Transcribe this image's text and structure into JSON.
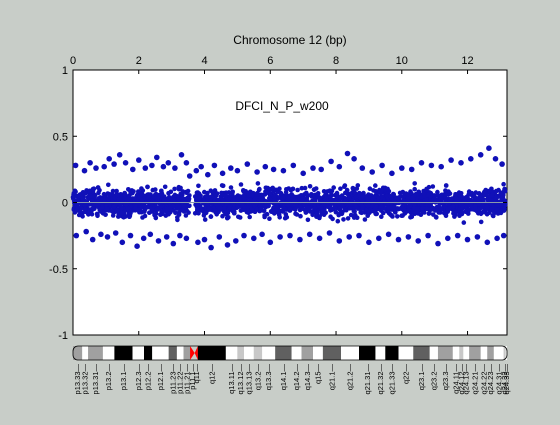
{
  "chart_data": {
    "type": "scatter",
    "title": "Chromosome 12 (bp)",
    "annotation": "DFCI_N_P_w200",
    "xlim": [
      0,
      13.2
    ],
    "ylim": [
      -1,
      1
    ],
    "x_ticks": [
      {
        "value": 0,
        "label": "0"
      },
      {
        "value": 2,
        "label": "2"
      },
      {
        "value": 4,
        "label": "4"
      },
      {
        "value": 6,
        "label": "6"
      },
      {
        "value": 8,
        "label": "8"
      },
      {
        "value": 10,
        "label": "10"
      },
      {
        "value": 12,
        "label": "12"
      }
    ],
    "y_ticks": [
      {
        "value": 1,
        "label": "1"
      },
      {
        "value": 0.5,
        "label": "0.5"
      },
      {
        "value": 0,
        "label": "0"
      },
      {
        "value": -0.5,
        "label": "-0.5"
      },
      {
        "value": -1,
        "label": "-1"
      }
    ],
    "x_axis_position": "top",
    "grid": false,
    "baseline": 0,
    "marker_color": "#1010b8",
    "baseline_color": "#8a9aa8",
    "gap": [
      3.55,
      3.7
    ],
    "series": [
      {
        "values_x": [
          0.08,
          0.35,
          0.52,
          0.7,
          0.95,
          1.1,
          1.25,
          1.42,
          1.6,
          1.82,
          2.0,
          2.2,
          2.4,
          2.55,
          2.75,
          2.9,
          3.1,
          3.3,
          3.45,
          3.55,
          3.75,
          3.9,
          4.1,
          4.3,
          4.55,
          4.8,
          5.0,
          5.3,
          5.6,
          5.85,
          6.1,
          6.4,
          6.7,
          7.0,
          7.3,
          7.55,
          7.85,
          8.1,
          8.35,
          8.55,
          8.8,
          9.1,
          9.4,
          9.7,
          10.0,
          10.3,
          10.6,
          10.9,
          11.2,
          11.5,
          11.8,
          12.1,
          12.4,
          12.65,
          12.85,
          13.05
        ],
        "values_y": [
          0.28,
          0.24,
          0.3,
          0.26,
          0.27,
          0.33,
          0.29,
          0.36,
          0.3,
          0.25,
          0.32,
          0.26,
          0.28,
          0.34,
          0.27,
          0.3,
          0.26,
          0.36,
          0.3,
          0.2,
          0.24,
          0.27,
          0.21,
          0.28,
          0.22,
          0.26,
          0.24,
          0.29,
          0.23,
          0.27,
          0.25,
          0.24,
          0.28,
          0.22,
          0.26,
          0.25,
          0.31,
          0.27,
          0.37,
          0.33,
          0.26,
          0.23,
          0.28,
          0.22,
          0.26,
          0.25,
          0.3,
          0.28,
          0.27,
          0.32,
          0.3,
          0.33,
          0.36,
          0.41,
          0.33,
          0.29
        ]
      },
      {
        "values_x": [
          0.1,
          0.4,
          0.6,
          0.85,
          1.05,
          1.3,
          1.5,
          1.75,
          1.95,
          2.15,
          2.35,
          2.6,
          2.85,
          3.05,
          3.25,
          3.45,
          3.8,
          4.0,
          4.2,
          4.45,
          4.7,
          4.95,
          5.2,
          5.5,
          5.75,
          6.0,
          6.3,
          6.6,
          6.9,
          7.2,
          7.5,
          7.8,
          8.1,
          8.4,
          8.7,
          9.0,
          9.3,
          9.6,
          9.9,
          10.2,
          10.5,
          10.8,
          11.1,
          11.4,
          11.7,
          12.0,
          12.3,
          12.6,
          12.9,
          13.1
        ],
        "values_y": [
          -0.25,
          -0.22,
          -0.28,
          -0.24,
          -0.26,
          -0.23,
          -0.3,
          -0.25,
          -0.33,
          -0.27,
          -0.24,
          -0.29,
          -0.26,
          -0.31,
          -0.25,
          -0.27,
          -0.3,
          -0.28,
          -0.34,
          -0.26,
          -0.32,
          -0.29,
          -0.25,
          -0.27,
          -0.24,
          -0.3,
          -0.26,
          -0.25,
          -0.28,
          -0.24,
          -0.27,
          -0.23,
          -0.29,
          -0.26,
          -0.25,
          -0.3,
          -0.27,
          -0.24,
          -0.28,
          -0.26,
          -0.29,
          -0.25,
          -0.31,
          -0.27,
          -0.25,
          -0.28,
          -0.26,
          -0.3,
          -0.27,
          -0.25
        ]
      }
    ]
  },
  "ideogram": {
    "bands": [
      {
        "label": "p13.33",
        "x": 0.0,
        "w": 0.28,
        "stain": "gpos50"
      },
      {
        "label": "p13.32",
        "x": 0.28,
        "w": 0.18,
        "stain": "gneg"
      },
      {
        "label": "p13.31",
        "x": 0.46,
        "w": 0.45,
        "stain": "gpos50"
      },
      {
        "label": "p13.2",
        "x": 0.91,
        "w": 0.35,
        "stain": "gneg"
      },
      {
        "label": "p13.1",
        "x": 1.26,
        "w": 0.55,
        "stain": "gpos100"
      },
      {
        "label": "p12.3",
        "x": 1.81,
        "w": 0.35,
        "stain": "gneg"
      },
      {
        "label": "p12.2",
        "x": 2.16,
        "w": 0.25,
        "stain": "gpos100"
      },
      {
        "label": "p12.1",
        "x": 2.41,
        "w": 0.5,
        "stain": "gneg"
      },
      {
        "label": "p11.23",
        "x": 2.91,
        "w": 0.25,
        "stain": "gpos75"
      },
      {
        "label": "p11.22",
        "x": 3.16,
        "w": 0.2,
        "stain": "gneg"
      },
      {
        "label": "p11.21",
        "x": 3.36,
        "w": 0.2,
        "stain": "gpos50"
      },
      {
        "label": "p11.1",
        "x": 3.56,
        "w": 0.14,
        "stain": "acen"
      },
      {
        "label": "q11",
        "x": 3.7,
        "w": 0.1,
        "stain": "acen"
      },
      {
        "label": "q12",
        "x": 3.8,
        "w": 0.85,
        "stain": "gpos100"
      },
      {
        "label": "q13.11",
        "x": 4.65,
        "w": 0.35,
        "stain": "gneg"
      },
      {
        "label": "q13.12",
        "x": 5.0,
        "w": 0.2,
        "stain": "gpos25"
      },
      {
        "label": "q13.13",
        "x": 5.2,
        "w": 0.3,
        "stain": "gneg"
      },
      {
        "label": "q13.2",
        "x": 5.5,
        "w": 0.25,
        "stain": "gpos25"
      },
      {
        "label": "q13.3",
        "x": 5.75,
        "w": 0.4,
        "stain": "gneg"
      },
      {
        "label": "q14.1",
        "x": 6.15,
        "w": 0.5,
        "stain": "gpos75"
      },
      {
        "label": "q14.2",
        "x": 6.65,
        "w": 0.3,
        "stain": "gneg"
      },
      {
        "label": "q14.3",
        "x": 6.95,
        "w": 0.35,
        "stain": "gpos50"
      },
      {
        "label": "q15",
        "x": 7.3,
        "w": 0.3,
        "stain": "gneg"
      },
      {
        "label": "q21.1",
        "x": 7.6,
        "w": 0.55,
        "stain": "gpos75"
      },
      {
        "label": "q21.2",
        "x": 8.15,
        "w": 0.55,
        "stain": "gneg"
      },
      {
        "label": "q21.31",
        "x": 8.7,
        "w": 0.5,
        "stain": "gpos100"
      },
      {
        "label": "q21.32",
        "x": 9.2,
        "w": 0.3,
        "stain": "gneg"
      },
      {
        "label": "q21.33",
        "x": 9.5,
        "w": 0.4,
        "stain": "gpos100"
      },
      {
        "label": "q22",
        "x": 9.9,
        "w": 0.45,
        "stain": "gneg"
      },
      {
        "label": "q23.1",
        "x": 10.35,
        "w": 0.5,
        "stain": "gpos75"
      },
      {
        "label": "q23.2",
        "x": 10.85,
        "w": 0.25,
        "stain": "gneg"
      },
      {
        "label": "q23.3",
        "x": 11.1,
        "w": 0.45,
        "stain": "gpos50"
      },
      {
        "label": "q24.11",
        "x": 11.55,
        "w": 0.2,
        "stain": "gneg"
      },
      {
        "label": "q24.12",
        "x": 11.75,
        "w": 0.12,
        "stain": "gpos25"
      },
      {
        "label": "q24.13",
        "x": 11.87,
        "w": 0.18,
        "stain": "gneg"
      },
      {
        "label": "q24.21",
        "x": 12.05,
        "w": 0.35,
        "stain": "gpos50"
      },
      {
        "label": "q24.22",
        "x": 12.4,
        "w": 0.2,
        "stain": "gneg"
      },
      {
        "label": "q24.23",
        "x": 12.6,
        "w": 0.2,
        "stain": "gpos50"
      },
      {
        "label": "q24.31",
        "x": 12.8,
        "w": 0.3,
        "stain": "gneg"
      },
      {
        "label": "q24.32",
        "x": 13.1,
        "w": 0.06,
        "stain": "gpos25"
      },
      {
        "label": "q24.33",
        "x": 13.16,
        "w": 0.04,
        "stain": "gneg"
      }
    ],
    "stain_colors": {
      "gneg": "#ffffff",
      "gpos25": "#c8c8c8",
      "gpos50": "#a0a0a0",
      "gpos75": "#606060",
      "gpos100": "#000000",
      "acen": "#ff0000"
    }
  }
}
